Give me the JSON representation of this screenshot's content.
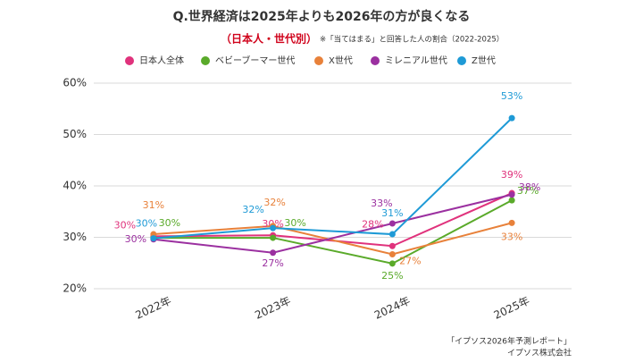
{
  "chart_data": {
    "type": "line",
    "title": "Q.世界経済は2025年よりも2026年の方が良くなる",
    "subtitle": "（日本人・世代別）",
    "note": "※「当てはまる」と回答した人の割合（2022-2025）",
    "source": [
      "「イプソス2026年予測レポート」",
      "イプソス株式会社"
    ],
    "categories": [
      "2022年",
      "2023年",
      "2024年",
      "2025年"
    ],
    "ylim": [
      20,
      60
    ],
    "yticks": [
      {
        "value": 20,
        "label": "20%"
      },
      {
        "value": 30,
        "label": "30%"
      },
      {
        "value": 40,
        "label": "40%"
      },
      {
        "value": 50,
        "label": "50%"
      },
      {
        "value": 60,
        "label": "60%"
      }
    ],
    "grid": true,
    "series": [
      {
        "name": "日本人全体",
        "color": "#e0327c",
        "values": [
          30.2,
          30.4,
          28.3,
          38.6
        ],
        "value_labels": [
          "30%",
          "30%",
          "28%",
          "39%"
        ]
      },
      {
        "name": "ベビーブーマー世代",
        "color": "#5aaa2a",
        "values": [
          29.9,
          29.9,
          24.9,
          37.2
        ],
        "value_labels": [
          "30%",
          "30%",
          "25%",
          "37%"
        ]
      },
      {
        "name": "X世代",
        "color": "#e8813a",
        "values": [
          30.6,
          32.2,
          26.7,
          32.8
        ],
        "value_labels": [
          "31%",
          "32%",
          "27%",
          "33%"
        ]
      },
      {
        "name": "ミレニアル世代",
        "color": "#9b30a0",
        "values": [
          29.6,
          27.0,
          32.7,
          38.3
        ],
        "value_labels": [
          "30%",
          "27%",
          "33%",
          "38%"
        ]
      },
      {
        "name": "Z世代",
        "color": "#1e9ad6",
        "values": [
          29.8,
          31.8,
          30.6,
          53.2
        ],
        "value_labels": [
          "30%",
          "32%",
          "31%",
          "53%"
        ]
      }
    ]
  }
}
